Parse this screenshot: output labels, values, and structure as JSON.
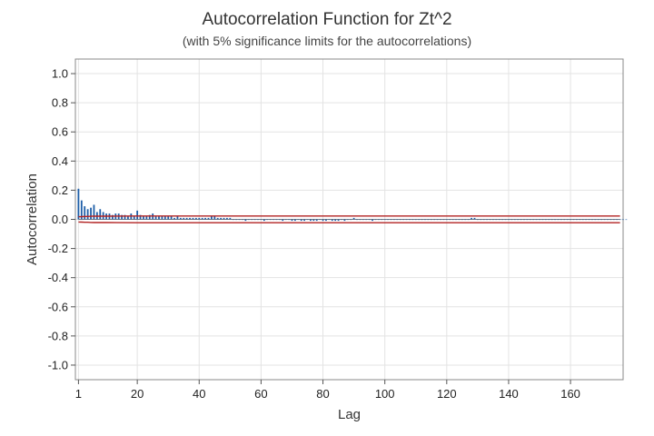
{
  "chart_data": {
    "type": "bar",
    "title": "Autocorrelation Function for Zt^2",
    "subtitle": "(with 5% significance limits for the autocorrelations)",
    "xlabel": "Lag",
    "ylabel": "Autocorrelation",
    "xlim": [
      0,
      177
    ],
    "ylim": [
      -1.1,
      1.1
    ],
    "xticks": [
      1,
      20,
      40,
      60,
      80,
      100,
      120,
      140,
      160
    ],
    "yticks": [
      1.0,
      0.8,
      0.6,
      0.4,
      0.2,
      0.0,
      -0.2,
      -0.4,
      -0.6,
      -0.8,
      -1.0
    ],
    "ytick_labels": [
      "1.0",
      "0.8",
      "0.6",
      "0.4",
      "0.2",
      "0.0",
      "-0.2",
      "-0.4",
      "-0.6",
      "-0.8",
      "-1.0"
    ],
    "grid": true,
    "legend": "none",
    "colors": {
      "bars": "#1f5fa8",
      "limits": "#b22222",
      "grid": "#e3e3e3",
      "frame": "#888888"
    },
    "significance_limits": {
      "lags": [
        1,
        2,
        3,
        4,
        5,
        6,
        10,
        20,
        40,
        60,
        80,
        100,
        120,
        140,
        160,
        176
      ],
      "upper": [
        0.018,
        0.019,
        0.02,
        0.02,
        0.021,
        0.022,
        0.022,
        0.023,
        0.023,
        0.023,
        0.023,
        0.023,
        0.023,
        0.023,
        0.023,
        0.023
      ],
      "lower": [
        -0.018,
        -0.019,
        -0.02,
        -0.02,
        -0.021,
        -0.022,
        -0.022,
        -0.023,
        -0.023,
        -0.023,
        -0.023,
        -0.023,
        -0.023,
        -0.023,
        -0.023,
        -0.023
      ]
    },
    "series": [
      {
        "values": [
          0.21,
          0.13,
          0.09,
          0.07,
          0.08,
          0.1,
          0.05,
          0.07,
          0.05,
          0.04,
          0.04,
          0.03,
          0.04,
          0.04,
          0.03,
          0.03,
          0.02,
          0.04,
          0.02,
          0.06,
          0.03,
          0.02,
          0.02,
          0.03,
          0.04,
          0.02,
          0.02,
          0.02,
          0.02,
          0.02,
          0.02,
          0.01,
          0.02,
          0.01,
          0.01,
          0.01,
          0.01,
          0.01,
          0.01,
          0.01,
          0.01,
          0.01,
          0.01,
          0.02,
          0.02,
          0.01,
          0.01,
          0.01,
          0.01,
          0.01,
          0.0,
          0.0,
          0.0,
          0.0,
          -0.01,
          0.0,
          0.0,
          0.0,
          0.0,
          0.0,
          -0.01,
          0.0,
          0.0,
          0.0,
          0.0,
          0.0,
          -0.01,
          0.0,
          0.0,
          -0.01,
          -0.01,
          0.0,
          -0.01,
          -0.01,
          0.0,
          -0.01,
          -0.01,
          -0.01,
          0.0,
          -0.01,
          -0.01,
          0.0,
          -0.01,
          -0.01,
          -0.01,
          0.0,
          -0.01,
          0.0,
          0.0,
          0.01,
          0.0,
          0.0,
          0.0,
          0.0,
          0.0,
          -0.01,
          0.0,
          0.0,
          0.0,
          0.0,
          0.0,
          0.0,
          0.0,
          0.0,
          0.0,
          0.0,
          0.0,
          0.0,
          0.0,
          0.0,
          0.0,
          0.0,
          0.0,
          0.0,
          0.0,
          0.0,
          0.0,
          0.0,
          0.0,
          0.0,
          0.0,
          0.0,
          0.0,
          0.0,
          0.0,
          0.0,
          0.0,
          0.01,
          0.01,
          0.0,
          0.0,
          0.0,
          0.0,
          0.0,
          0.0,
          0.0,
          0.0,
          0.0,
          0.0,
          0.0,
          0.0,
          0.0,
          0.0,
          0.0,
          0.0,
          0.0,
          0.0,
          0.0,
          0.0,
          0.0,
          0.0,
          0.0,
          0.0,
          0.0,
          0.0,
          0.0,
          0.0,
          0.0,
          0.0,
          0.0,
          0.0,
          0.0,
          0.0,
          0.0,
          0.0,
          0.0,
          0.0,
          0.0,
          0.0,
          0.0,
          0.0,
          0.0,
          0.0,
          0.0,
          0.0,
          0.0,
          0.0,
          0.0
        ]
      }
    ]
  }
}
